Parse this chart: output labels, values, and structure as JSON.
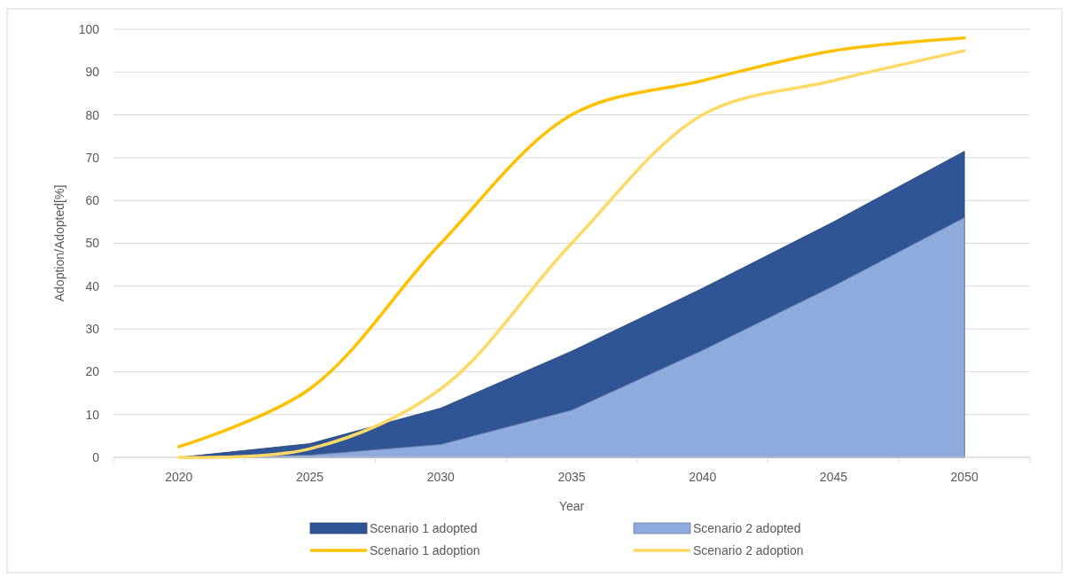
{
  "chart_data": {
    "type": "area",
    "xlabel": "Year",
    "ylabel": "Adoption/Adopted[%]",
    "categories": [
      "2020",
      "2025",
      "2030",
      "2035",
      "2040",
      "2045",
      "2050"
    ],
    "ylim": [
      0,
      100
    ],
    "yticks": [
      0,
      10,
      20,
      30,
      40,
      50,
      60,
      70,
      80,
      90,
      100
    ],
    "grid": "y",
    "legend": "bottom",
    "series": [
      {
        "name": "Scenario 1 adopted",
        "color": "#2f5597",
        "values": [
          0,
          3.2,
          11.5,
          24.8,
          39.5,
          55,
          71.5
        ]
      },
      {
        "name": "Scenario 2 adopted",
        "color": "#8faadc",
        "values": [
          0,
          0.5,
          3,
          11,
          25,
          40,
          56
        ]
      },
      {
        "name": "Scenario 1 adoption",
        "type": "line",
        "color": "#ffc000",
        "values": [
          2.5,
          16,
          50,
          80,
          88,
          95,
          98
        ]
      },
      {
        "name": "Scenario 2 adoption",
        "type": "line",
        "color": "#ffd966",
        "values": [
          0,
          2,
          16,
          50,
          80,
          88,
          95
        ]
      }
    ]
  }
}
